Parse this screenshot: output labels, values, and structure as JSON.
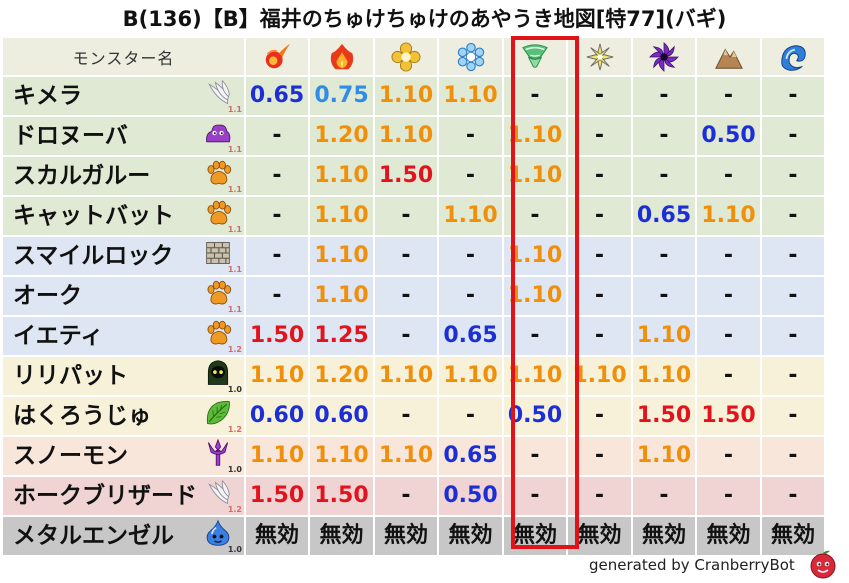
{
  "title": "B(136)【B】福井のちゅけちゅけのあやうき地図[特77](バギ)",
  "header": {
    "name_label": "モンスター名",
    "elements": [
      {
        "icon": "fire-icon"
      },
      {
        "icon": "flame-icon"
      },
      {
        "icon": "ice-icon"
      },
      {
        "icon": "snowflake-icon"
      },
      {
        "icon": "wind-icon"
      },
      {
        "icon": "light-icon"
      },
      {
        "icon": "dark-icon"
      },
      {
        "icon": "earth-icon"
      },
      {
        "icon": "water-icon"
      }
    ]
  },
  "highlighted_column": 4,
  "rows": [
    {
      "name": "キメラ",
      "icon": "wing-icon",
      "mult": "1.1",
      "mult_color": "pink",
      "bg": "g",
      "values": [
        {
          "t": "0.65",
          "c": "blue"
        },
        {
          "t": "0.75",
          "c": "lblue"
        },
        {
          "t": "1.10",
          "c": "orange"
        },
        {
          "t": "1.10",
          "c": "orange"
        },
        {
          "t": "-",
          "c": "dash"
        },
        {
          "t": "-",
          "c": "dash"
        },
        {
          "t": "-",
          "c": "dash"
        },
        {
          "t": "-",
          "c": "dash"
        },
        {
          "t": "-",
          "c": "dash"
        }
      ]
    },
    {
      "name": "ドロヌーバ",
      "icon": "slime-blob-icon",
      "mult": "1.1",
      "mult_color": "pink",
      "bg": "g",
      "values": [
        {
          "t": "-",
          "c": "dash"
        },
        {
          "t": "1.20",
          "c": "orange"
        },
        {
          "t": "1.10",
          "c": "orange"
        },
        {
          "t": "-",
          "c": "dash"
        },
        {
          "t": "1.10",
          "c": "orange"
        },
        {
          "t": "-",
          "c": "dash"
        },
        {
          "t": "-",
          "c": "dash"
        },
        {
          "t": "0.50",
          "c": "blue"
        },
        {
          "t": "-",
          "c": "dash"
        }
      ]
    },
    {
      "name": "スカルガルー",
      "icon": "paw-icon",
      "mult": "1.1",
      "mult_color": "pink",
      "bg": "g",
      "values": [
        {
          "t": "-",
          "c": "dash"
        },
        {
          "t": "1.10",
          "c": "orange"
        },
        {
          "t": "1.50",
          "c": "red"
        },
        {
          "t": "-",
          "c": "dash"
        },
        {
          "t": "1.10",
          "c": "orange"
        },
        {
          "t": "-",
          "c": "dash"
        },
        {
          "t": "-",
          "c": "dash"
        },
        {
          "t": "-",
          "c": "dash"
        },
        {
          "t": "-",
          "c": "dash"
        }
      ]
    },
    {
      "name": "キャットバット",
      "icon": "paw-icon",
      "mult": "1.1",
      "mult_color": "pink",
      "bg": "g",
      "values": [
        {
          "t": "-",
          "c": "dash"
        },
        {
          "t": "1.10",
          "c": "orange"
        },
        {
          "t": "-",
          "c": "dash"
        },
        {
          "t": "1.10",
          "c": "orange"
        },
        {
          "t": "-",
          "c": "dash"
        },
        {
          "t": "-",
          "c": "dash"
        },
        {
          "t": "0.65",
          "c": "blue"
        },
        {
          "t": "1.10",
          "c": "orange"
        },
        {
          "t": "-",
          "c": "dash"
        }
      ]
    },
    {
      "name": "スマイルロック",
      "icon": "brick-icon",
      "mult": "1.1",
      "mult_color": "pink",
      "bg": "p",
      "values": [
        {
          "t": "-",
          "c": "dash"
        },
        {
          "t": "1.10",
          "c": "orange"
        },
        {
          "t": "-",
          "c": "dash"
        },
        {
          "t": "-",
          "c": "dash"
        },
        {
          "t": "1.10",
          "c": "orange"
        },
        {
          "t": "-",
          "c": "dash"
        },
        {
          "t": "-",
          "c": "dash"
        },
        {
          "t": "-",
          "c": "dash"
        },
        {
          "t": "-",
          "c": "dash"
        }
      ]
    },
    {
      "name": "オーク",
      "icon": "paw-icon",
      "mult": "1.1",
      "mult_color": "pink",
      "bg": "p",
      "values": [
        {
          "t": "-",
          "c": "dash"
        },
        {
          "t": "1.10",
          "c": "orange"
        },
        {
          "t": "-",
          "c": "dash"
        },
        {
          "t": "-",
          "c": "dash"
        },
        {
          "t": "1.10",
          "c": "orange"
        },
        {
          "t": "-",
          "c": "dash"
        },
        {
          "t": "-",
          "c": "dash"
        },
        {
          "t": "-",
          "c": "dash"
        },
        {
          "t": "-",
          "c": "dash"
        }
      ]
    },
    {
      "name": "イエティ",
      "icon": "paw-icon",
      "mult": "1.2",
      "mult_color": "pink",
      "bg": "p",
      "values": [
        {
          "t": "1.50",
          "c": "red"
        },
        {
          "t": "1.25",
          "c": "red"
        },
        {
          "t": "-",
          "c": "dash"
        },
        {
          "t": "0.65",
          "c": "blue"
        },
        {
          "t": "-",
          "c": "dash"
        },
        {
          "t": "-",
          "c": "dash"
        },
        {
          "t": "1.10",
          "c": "orange"
        },
        {
          "t": "-",
          "c": "dash"
        },
        {
          "t": "-",
          "c": "dash"
        }
      ]
    },
    {
      "name": "リリパット",
      "icon": "hooded-figure-icon",
      "mult": "1.0",
      "mult_color": "dark",
      "bg": "y",
      "values": [
        {
          "t": "1.10",
          "c": "orange"
        },
        {
          "t": "1.20",
          "c": "orange"
        },
        {
          "t": "1.10",
          "c": "orange"
        },
        {
          "t": "1.10",
          "c": "orange"
        },
        {
          "t": "1.10",
          "c": "orange"
        },
        {
          "t": "1.10",
          "c": "orange"
        },
        {
          "t": "1.10",
          "c": "orange"
        },
        {
          "t": "-",
          "c": "dash"
        },
        {
          "t": "-",
          "c": "dash"
        }
      ]
    },
    {
      "name": "はくろうじゅ",
      "icon": "leaf-icon",
      "mult": "1.2",
      "mult_color": "pink",
      "bg": "y",
      "values": [
        {
          "t": "0.60",
          "c": "blue"
        },
        {
          "t": "0.60",
          "c": "blue"
        },
        {
          "t": "-",
          "c": "dash"
        },
        {
          "t": "-",
          "c": "dash"
        },
        {
          "t": "0.50",
          "c": "blue"
        },
        {
          "t": "-",
          "c": "dash"
        },
        {
          "t": "1.50",
          "c": "red"
        },
        {
          "t": "1.50",
          "c": "red"
        },
        {
          "t": "-",
          "c": "dash"
        }
      ]
    },
    {
      "name": "スノーモン",
      "icon": "trident-icon",
      "mult": "1.0",
      "mult_color": "dark",
      "bg": "o",
      "values": [
        {
          "t": "1.10",
          "c": "orange"
        },
        {
          "t": "1.10",
          "c": "orange"
        },
        {
          "t": "1.10",
          "c": "orange"
        },
        {
          "t": "0.65",
          "c": "blue"
        },
        {
          "t": "-",
          "c": "dash"
        },
        {
          "t": "-",
          "c": "dash"
        },
        {
          "t": "1.10",
          "c": "orange"
        },
        {
          "t": "-",
          "c": "dash"
        },
        {
          "t": "-",
          "c": "dash"
        }
      ]
    },
    {
      "name": "ホークブリザード",
      "icon": "wing-icon",
      "mult": "1.2",
      "mult_color": "pink",
      "bg": "r",
      "values": [
        {
          "t": "1.50",
          "c": "red"
        },
        {
          "t": "1.50",
          "c": "red"
        },
        {
          "t": "-",
          "c": "dash"
        },
        {
          "t": "0.50",
          "c": "blue"
        },
        {
          "t": "-",
          "c": "dash"
        },
        {
          "t": "-",
          "c": "dash"
        },
        {
          "t": "-",
          "c": "dash"
        },
        {
          "t": "-",
          "c": "dash"
        },
        {
          "t": "-",
          "c": "dash"
        }
      ]
    },
    {
      "name": "メタルエンゼル",
      "icon": "metal-slime-icon",
      "mult": "1.0",
      "mult_color": "dark",
      "bg": "gr",
      "values": [
        {
          "t": "無効",
          "c": "mu"
        },
        {
          "t": "無効",
          "c": "mu"
        },
        {
          "t": "無効",
          "c": "mu"
        },
        {
          "t": "無効",
          "c": "mu"
        },
        {
          "t": "無効",
          "c": "mu"
        },
        {
          "t": "無効",
          "c": "mu"
        },
        {
          "t": "無効",
          "c": "mu"
        },
        {
          "t": "無効",
          "c": "mu"
        },
        {
          "t": "無効",
          "c": "mu"
        }
      ]
    }
  ],
  "footer": {
    "credit": "generated by CranberryBot",
    "logo_icon": "cranberry-bot-icon"
  }
}
